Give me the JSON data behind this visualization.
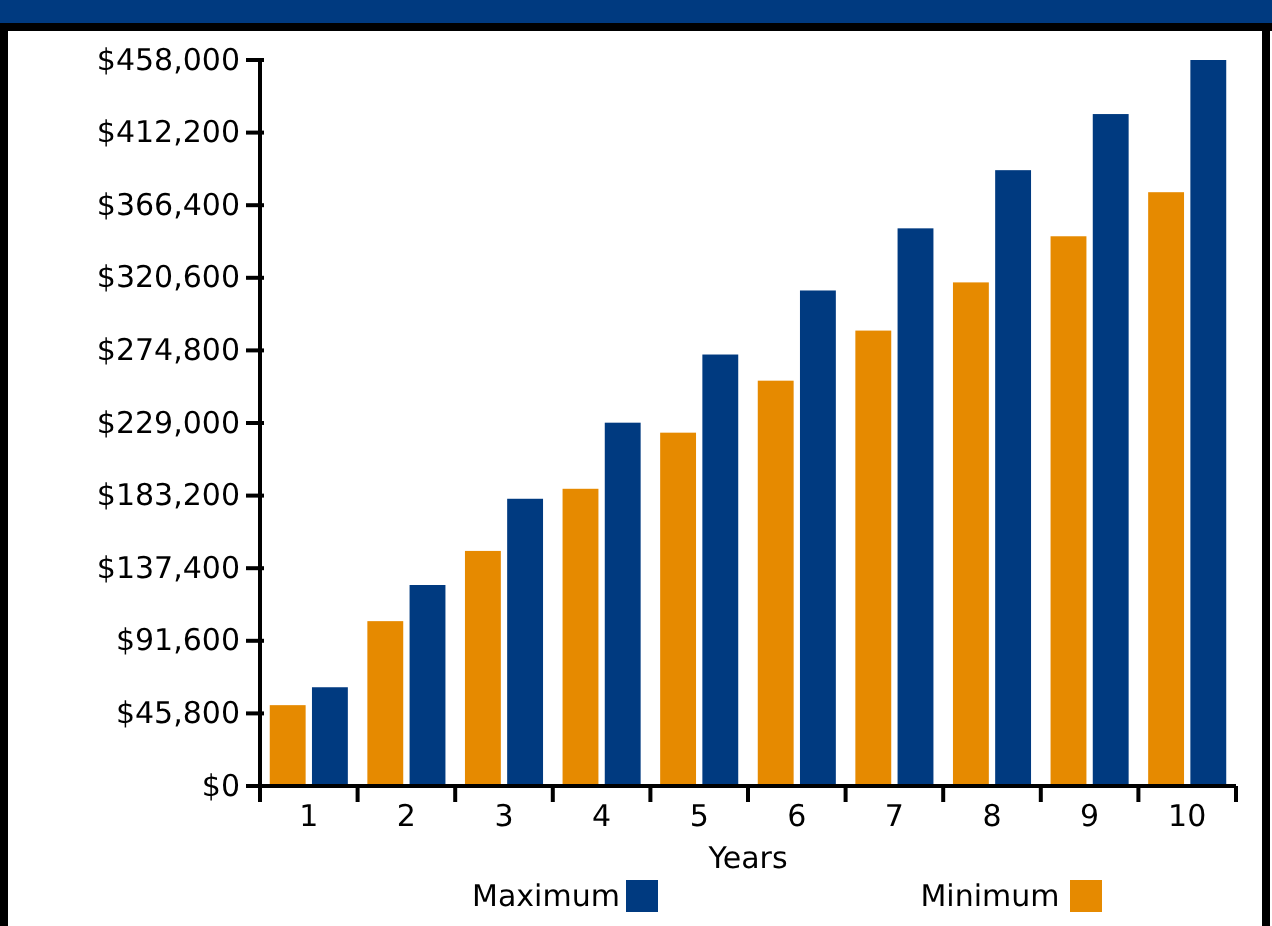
{
  "chart_data": {
    "type": "bar",
    "xlabel": "Years",
    "categories": [
      "1",
      "2",
      "3",
      "4",
      "5",
      "6",
      "7",
      "8",
      "9",
      "10"
    ],
    "series": [
      {
        "name": "Minimum",
        "color": "#e68a00",
        "values": [
          51000,
          104000,
          148300,
          187500,
          222900,
          255700,
          287300,
          317700,
          346800,
          374600
        ]
      },
      {
        "name": "Maximum",
        "color": "#003a80",
        "values": [
          62300,
          126800,
          181200,
          229200,
          272200,
          312600,
          351800,
          388500,
          423900,
          458000
        ]
      }
    ],
    "ylim": [
      0,
      458000
    ],
    "yticks": [
      {
        "value": 0,
        "label": "$0"
      },
      {
        "value": 45800,
        "label": "$45,800"
      },
      {
        "value": 91600,
        "label": "$91,600"
      },
      {
        "value": 137400,
        "label": "$137,400"
      },
      {
        "value": 183200,
        "label": "$183,200"
      },
      {
        "value": 229000,
        "label": "$229,000"
      },
      {
        "value": 274800,
        "label": "$274,800"
      },
      {
        "value": 320600,
        "label": "$320,600"
      },
      {
        "value": 366400,
        "label": "$366,400"
      },
      {
        "value": 412200,
        "label": "$412,200"
      },
      {
        "value": 458000,
        "label": "$458,000"
      }
    ],
    "legend": "bottom"
  }
}
